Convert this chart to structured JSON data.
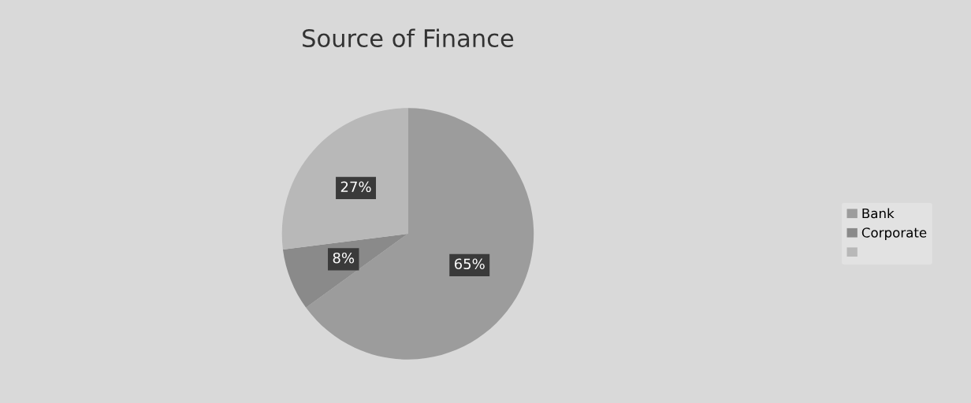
{
  "chart_data": {
    "type": "pie",
    "title": "Source of Finance",
    "categories": [
      "Bank",
      "Corporate",
      null
    ],
    "values": [
      65,
      8,
      27
    ],
    "colors": [
      "#9c9c9c",
      "#8a8a8a",
      "#b8b8b8"
    ],
    "value_labels": [
      "65%",
      "8%",
      "27%"
    ],
    "legend": "right"
  }
}
